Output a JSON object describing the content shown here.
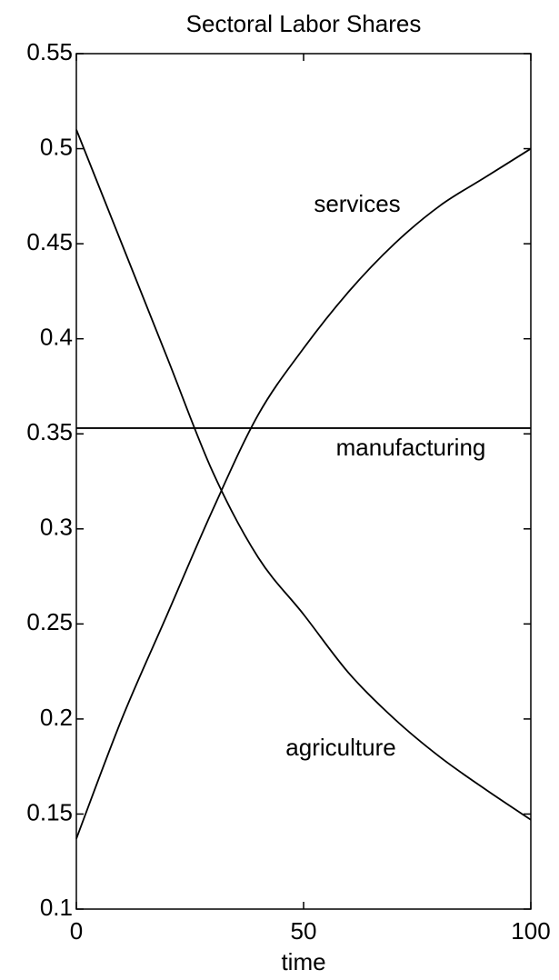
{
  "chart_data": {
    "type": "line",
    "title": "Sectoral Labor Shares",
    "x_label": "time",
    "x": [
      0,
      10,
      20,
      30,
      40,
      50,
      60,
      70,
      80,
      90,
      100
    ],
    "series": [
      {
        "name": "agriculture",
        "color": "#000000",
        "values": [
          0.51,
          0.45,
          0.39,
          0.33,
          0.285,
          0.255,
          0.224,
          0.2,
          0.18,
          0.163,
          0.147
        ]
      },
      {
        "name": "manufacturing",
        "color": "#000000",
        "values": [
          0.353,
          0.353,
          0.353,
          0.353,
          0.353,
          0.353,
          0.353,
          0.353,
          0.353,
          0.353,
          0.353
        ]
      },
      {
        "name": "services",
        "color": "#000000",
        "values": [
          0.137,
          0.2,
          0.255,
          0.31,
          0.36,
          0.395,
          0.425,
          0.45,
          0.47,
          0.485,
          0.5
        ]
      }
    ],
    "xlim": [
      0,
      100
    ],
    "xticks": [
      0,
      50,
      100
    ],
    "ylim": [
      0.1,
      0.55
    ],
    "yticks": [
      0.1,
      0.15,
      0.2,
      0.25,
      0.3,
      0.35,
      0.4,
      0.45,
      0.5,
      0.55
    ],
    "grid": false
  }
}
